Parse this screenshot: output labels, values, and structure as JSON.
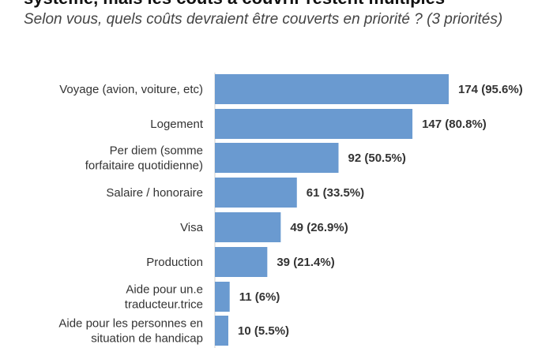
{
  "chart_data": {
    "type": "bar",
    "orientation": "horizontal",
    "title": "système, mais les coûts à couvrir restent multiples",
    "subtitle": "Selon vous, quels coûts devraient être couverts en priorité ? (3 priorités)",
    "categories": [
      "Voyage (avion, voiture, etc)",
      "Logement",
      "Per diem (somme forfaitaire quotidienne)",
      "Salaire / honoraire",
      "Visa",
      "Production",
      "Aide pour un.e traducteur.trice",
      "Aide pour les personnes en situation de handicap"
    ],
    "category_lines": [
      [
        "Voyage (avion, voiture, etc)"
      ],
      [
        "Logement"
      ],
      [
        "Per diem (somme",
        "forfaitaire quotidienne)"
      ],
      [
        "Salaire / honoraire"
      ],
      [
        "Visa"
      ],
      [
        "Production"
      ],
      [
        "Aide pour un.e",
        "traducteur.trice"
      ],
      [
        "Aide pour les personnes en",
        "situation de handicap"
      ]
    ],
    "values": [
      174,
      147,
      92,
      61,
      49,
      39,
      11,
      10
    ],
    "value_labels": [
      "174 (95.6%)",
      "147 (80.8%)",
      "92 (50.5%)",
      "61 (33.5%)",
      "49 (26.9%)",
      "39 (21.4%)",
      "11 (6%)",
      "10 (5.5%)"
    ],
    "xlim": [
      0,
      174
    ],
    "bar_color": "#6a9ad0",
    "grid": false,
    "legend": "none"
  }
}
